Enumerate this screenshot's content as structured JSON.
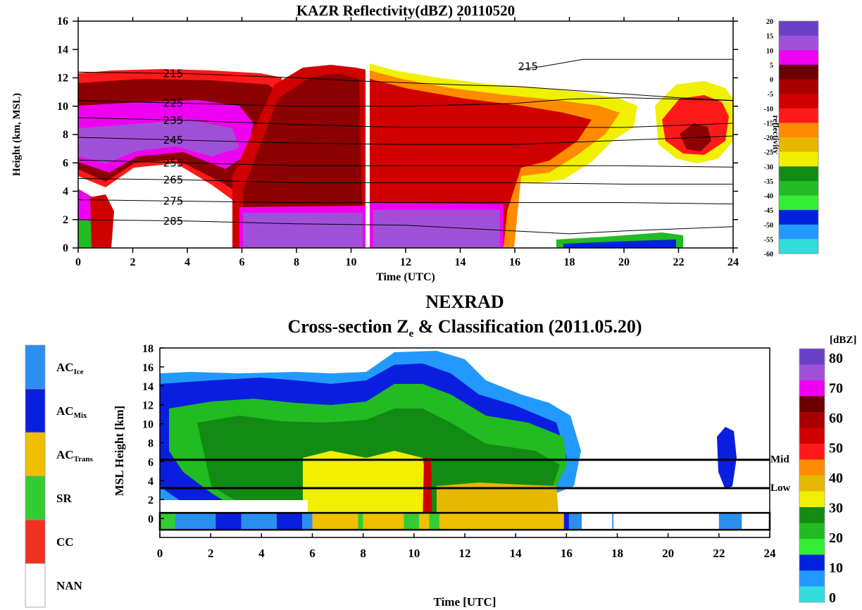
{
  "chart_data": [
    {
      "type": "heatmap",
      "title": "KAZR Reflectivity(dBZ) 20110520",
      "xlabel": "Time (UTC)",
      "ylabel": "Height (km, MSL)",
      "xlim": [
        0,
        24
      ],
      "ylim": [
        0,
        16
      ],
      "x_ticks": [
        "0",
        "2",
        "4",
        "6",
        "8",
        "10",
        "12",
        "14",
        "16",
        "18",
        "20",
        "22",
        "24"
      ],
      "y_ticks": [
        "0",
        "2",
        "4",
        "6",
        "8",
        "10",
        "12",
        "14",
        "16"
      ],
      "colorbar": {
        "label": "reflectivity",
        "ticks": [
          "20",
          "15",
          "10",
          "5",
          "0",
          "-5",
          "-10",
          "-15",
          "-20",
          "-25",
          "-30",
          "-35",
          "-40",
          "-45",
          "-50",
          "-55",
          "-60"
        ],
        "colors": [
          "#6a3fc8",
          "#a050d8",
          "#f000f0",
          "#6b0000",
          "#a80000",
          "#d00000",
          "#ff1a1a",
          "#ff8c00",
          "#e6b800",
          "#f0f000",
          "#138a13",
          "#22bb22",
          "#33ee33",
          "#0022dd",
          "#2299ff",
          "#33dddd"
        ]
      },
      "contours": [
        {
          "label": "215",
          "points": [
            [
              0,
              12.4
            ],
            [
              4,
              12.3
            ],
            [
              8,
              12.0
            ],
            [
              10,
              11.8
            ],
            [
              14,
              11.5
            ],
            [
              16,
              11.4
            ],
            [
              22,
              10.6
            ],
            [
              24,
              10.4
            ]
          ]
        },
        {
          "label": "215",
          "points": [
            [
              16.2,
              12.6
            ],
            [
              17.0,
              12.8
            ],
            [
              17.6,
              13.0
            ],
            [
              18.5,
              13.3
            ],
            [
              24,
              13.3
            ]
          ]
        },
        {
          "label": "225",
          "points": [
            [
              0,
              10.4
            ],
            [
              4,
              10.2
            ],
            [
              8,
              10.0
            ],
            [
              12,
              10.0
            ],
            [
              16,
              10.2
            ],
            [
              18,
              10.5
            ],
            [
              20,
              10.6
            ],
            [
              24,
              10.4
            ]
          ]
        },
        {
          "label": "235",
          "points": [
            [
              0,
              9.2
            ],
            [
              4,
              9.0
            ],
            [
              8,
              8.7
            ],
            [
              12,
              8.5
            ],
            [
              16,
              8.5
            ],
            [
              20,
              8.5
            ],
            [
              24,
              8.8
            ]
          ]
        },
        {
          "label": "245",
          "points": [
            [
              0,
              7.8
            ],
            [
              4,
              7.6
            ],
            [
              8,
              7.4
            ],
            [
              12,
              7.3
            ],
            [
              16,
              7.3
            ],
            [
              20,
              7.6
            ],
            [
              24,
              7.9
            ]
          ]
        },
        {
          "label": "255",
          "points": [
            [
              0,
              6.2
            ],
            [
              4,
              6.0
            ],
            [
              8,
              5.8
            ],
            [
              12,
              5.8
            ],
            [
              16,
              5.8
            ],
            [
              20,
              5.8
            ],
            [
              24,
              5.7
            ]
          ]
        },
        {
          "label": "265",
          "points": [
            [
              0,
              4.9
            ],
            [
              4,
              4.8
            ],
            [
              8,
              4.6
            ],
            [
              12,
              4.6
            ],
            [
              16,
              4.6
            ],
            [
              20,
              4.5
            ],
            [
              24,
              4.5
            ]
          ]
        },
        {
          "label": "275",
          "points": [
            [
              0,
              3.4
            ],
            [
              4,
              3.3
            ],
            [
              8,
              3.2
            ],
            [
              12,
              3.2
            ],
            [
              16,
              3.2
            ],
            [
              20,
              3.2
            ],
            [
              24,
              3.1
            ]
          ]
        },
        {
          "label": "285",
          "points": [
            [
              0,
              2.0
            ],
            [
              4,
              1.9
            ],
            [
              8,
              1.7
            ],
            [
              12,
              1.6
            ],
            [
              16,
              1.2
            ],
            [
              18,
              1.0
            ],
            [
              20,
              1.2
            ],
            [
              24,
              1.5
            ]
          ]
        }
      ]
    },
    {
      "type": "heatmap",
      "title": "NEXRAD",
      "subtitle": "Cross-section Z",
      "subtitle_subscript": "e",
      "subtitle_tail": " & Classification (2011.05.20)",
      "xlabel": "Time [UTC]",
      "ylabel": "MSL Height [km]",
      "xlim": [
        0,
        24
      ],
      "ylim": [
        0,
        18
      ],
      "x_ticks": [
        "0",
        "2",
        "4",
        "6",
        "8",
        "10",
        "12",
        "14",
        "16",
        "18",
        "20",
        "22",
        "24"
      ],
      "y_ticks": [
        "0",
        "2",
        "4",
        "6",
        "8",
        "10",
        "12",
        "14",
        "16",
        "18"
      ],
      "reference_lines": [
        {
          "label": "Mid",
          "y": 6.2
        },
        {
          "label": "Low",
          "y": 3.2
        }
      ],
      "colorbar": {
        "label": "[dBZ]",
        "ticks": [
          "80",
          "70",
          "60",
          "50",
          "40",
          "30",
          "20",
          "10",
          "0"
        ],
        "colors": [
          "#6a3fc8",
          "#a050d8",
          "#f000f0",
          "#6b0000",
          "#a80000",
          "#d00000",
          "#ff1a1a",
          "#ff8c00",
          "#e6b800",
          "#f0f000",
          "#138a13",
          "#22bb22",
          "#33ee33",
          "#0022dd",
          "#2299ff",
          "#33dddd"
        ]
      },
      "classification_legend": [
        {
          "label": "AC",
          "sub": "Ice",
          "color": "#2b8ff0"
        },
        {
          "label": "AC",
          "sub": "Mix",
          "color": "#0a1ee0"
        },
        {
          "label": "AC",
          "sub": "Trans",
          "color": "#f0c000"
        },
        {
          "label": "SR",
          "sub": "",
          "color": "#33cc33"
        },
        {
          "label": "CC",
          "sub": "",
          "color": "#f03020"
        },
        {
          "label": "NAN",
          "sub": "",
          "color": "#ffffff"
        }
      ]
    }
  ]
}
